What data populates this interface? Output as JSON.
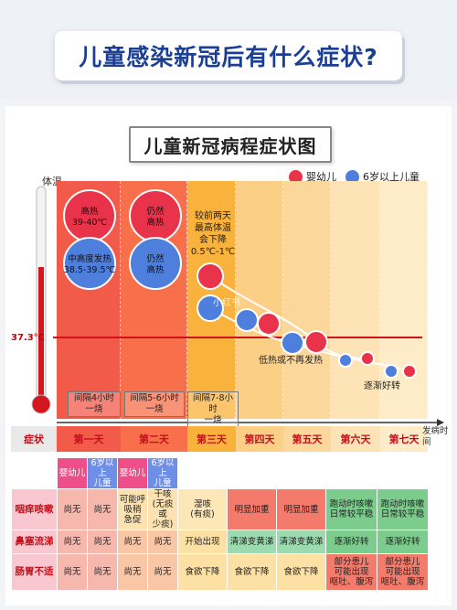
{
  "header": {
    "title": "儿童感染新冠后有什么症状?"
  },
  "chart_data": {
    "type": "scatter",
    "title": "儿童新冠病程症状图",
    "ylabel": "体温",
    "xlabel": "发病时间",
    "reference_line": {
      "value": "37.3℃",
      "color": "#d0121b"
    },
    "categories": [
      "第一天",
      "第二天",
      "第三天",
      "第四天",
      "第五天",
      "第六天",
      "第七天"
    ],
    "legend": [
      {
        "name": "婴幼儿",
        "color": "#e8334a"
      },
      {
        "name": "6岁以上儿童",
        "color": "#4f7fdc"
      }
    ],
    "bubble_labels": {
      "infant_day1": "高热\n39-40℃",
      "child_day1": "中高度发热\n38.5-39.5℃",
      "infant_day2": "仍然\n高热",
      "child_day2": "仍然\n高热"
    },
    "annotations": {
      "day3": "较前两天\n最高体温\n会下降\n0.5℃-1℃",
      "day4_5": "低热或不再发热",
      "day6_7": "逐渐好转"
    },
    "intervals": [
      "间隔4小时\n一烧",
      "间隔5-6小时\n一烧",
      "间隔7-8小时\n一烧"
    ],
    "column_colors": [
      "#f25a4a",
      "#f76f4b",
      "#f9b23c",
      "#fbcf86",
      "#fcd79b",
      "#fde3b5",
      "#feecc8"
    ]
  },
  "table": {
    "corner": "症状",
    "subheaders": [
      "婴幼儿",
      "6岁以上\n儿童",
      "婴幼儿",
      "6岁以上\n儿童"
    ],
    "rows": [
      {
        "label": "咽痒咳嗽",
        "cells": [
          "尚无",
          "尚无",
          "可能呼\n吸稍\n急促",
          "干咳\n(无痰或\n少痰)",
          "湿咳\n(有痰)",
          "明显加重",
          "明显加重",
          "跑动时咳嗽\n日常较平稳",
          "跑动时咳嗽\n日常较平稳"
        ]
      },
      {
        "label": "鼻塞流涕",
        "cells": [
          "尚无",
          "尚无",
          "尚无",
          "尚无",
          "开始出现",
          "清涕变黄涕",
          "清涕变黄涕",
          "逐渐好转",
          "逐渐好转"
        ]
      },
      {
        "label": "肠胃不适",
        "cells": [
          "尚无",
          "尚无",
          "尚无",
          "尚无",
          "食欲下降",
          "食欲下降",
          "食欲下降",
          "部分患儿\n可能出现\n呕吐、腹泻",
          "部分患儿\n可能出现\n呕吐、腹泻"
        ]
      }
    ]
  },
  "watermark": "小红书"
}
